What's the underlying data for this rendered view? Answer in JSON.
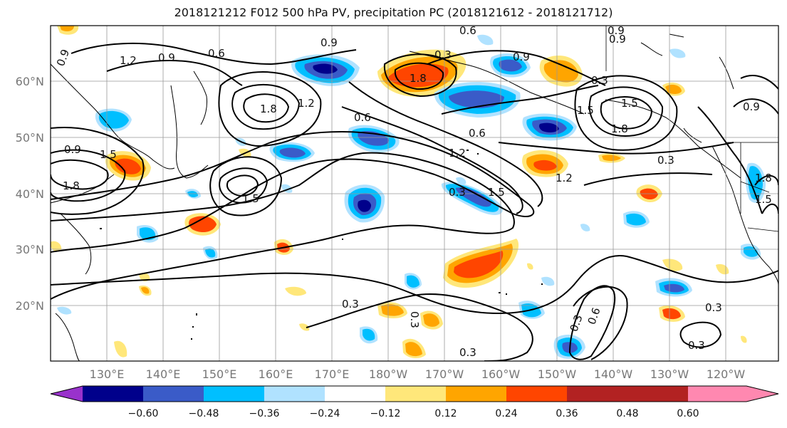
{
  "title": "2018121212 F012 500 hPa PV, precipitation PC (2018121612 - 2018121712)",
  "lat_labels": [
    "60°N",
    "50°N",
    "40°N",
    "30°N",
    "20°N"
  ],
  "lon_labels": [
    "130°E",
    "140°E",
    "150°E",
    "160°E",
    "170°E",
    "180°W",
    "170°W",
    "160°W",
    "150°W",
    "140°W",
    "130°W",
    "120°W"
  ],
  "colorbar": {
    "ticks": [
      "−0.60",
      "−0.48",
      "−0.36",
      "−0.24",
      "−0.12",
      "0.12",
      "0.24",
      "0.36",
      "0.48",
      "0.60"
    ],
    "colors": [
      "#9932CC",
      "#00008B",
      "#3A5BC8",
      "#00BFFF",
      "#B0E2FF",
      "#FFFFFF",
      "#FFE77A",
      "#FFA500",
      "#FF4500",
      "#B22222",
      "#FF88B0"
    ]
  },
  "contour_labels": [
    "0.9",
    "1.2",
    "0.9",
    "0.6",
    "0.9",
    "0.6",
    "0.9",
    "1.2",
    "0.3",
    "1.5",
    "1.8",
    "1.5",
    "1.8",
    "0.9",
    "1.8",
    "0.6",
    "0.6",
    "0.9",
    "1.2",
    "1.5",
    "0.3",
    "0.3",
    "1.8",
    "1.5",
    "0.9",
    "1.5",
    "1.8",
    "1.5",
    "1.2",
    "0.3",
    "0.3",
    "0.3",
    "0.3",
    "0.3",
    "0.3",
    "0.9",
    "0.6",
    "0.3"
  ]
}
